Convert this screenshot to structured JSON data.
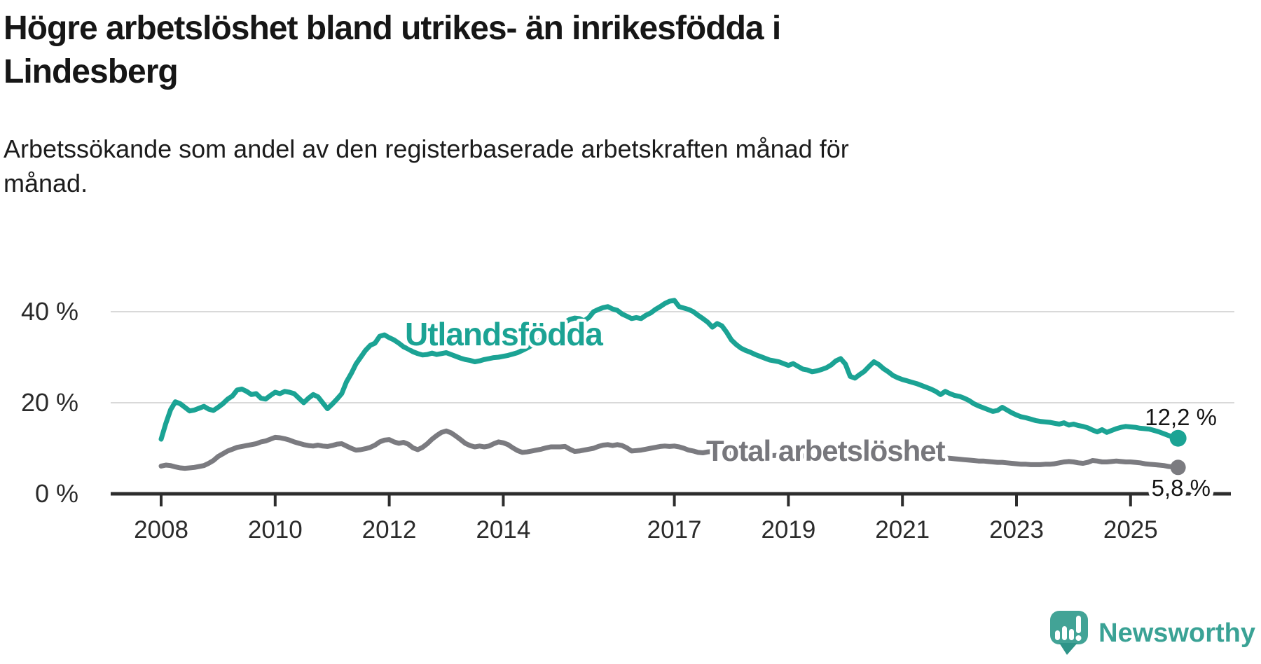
{
  "header": {
    "title": "Högre arbetslöshet bland utrikes- än inrikesfödda i Lindesberg",
    "title_lines": "Högre arbetslöshet bland utrikes- än inrikesfödda i\nLindesberg",
    "subtitle": "Arbetssökande som andel av den registerbaserade arbetskraften månad för månad.",
    "subtitle_lines": "Arbetssökande som andel av den registerbaserade arbetskraften månad för\nmånad."
  },
  "footer": {
    "brand_name": "Newsworthy"
  },
  "colors": {
    "series_foreign": "#1ba394",
    "series_total": "#7b7b80",
    "series_total_label": "#77777c",
    "axis": "#2d2d2d",
    "gridline": "#d9d9d9",
    "tick_label": "#2b2b2b",
    "annotation": "#161616",
    "brand_teal": "#3aa295",
    "brand_icon": "#42a396",
    "brand_icon_tail": "#2e9488",
    "background": "#ffffff"
  },
  "chart_data": {
    "type": "line",
    "title": "Högre arbetslöshet bland utrikes- än inrikesfödda i Lindesberg",
    "subtitle": "Arbetssökande som andel av den registerbaserade arbetskraften månad för månad.",
    "unit": "%",
    "x_ticks": [
      2008,
      2010,
      2012,
      2014,
      2017,
      2019,
      2021,
      2023,
      2025
    ],
    "y_ticks": [
      {
        "value": 0,
        "label": "0 %"
      },
      {
        "value": 20,
        "label": "20 %"
      },
      {
        "value": 40,
        "label": "40 %"
      }
    ],
    "ylim": [
      0,
      46
    ],
    "xlim_years": [
      2007.1,
      2026.9
    ],
    "grid": "horizontal-only",
    "legend_position": "inline-labels",
    "time": {
      "start_year": 2008,
      "start_month": 1,
      "end_year": 2025,
      "end_month": 11,
      "frequency": "monthly"
    },
    "series": [
      {
        "name": "Utlandsfödda",
        "color": "#1ba394",
        "end_value": 12.2,
        "end_label": "12,2 %",
        "values": [
          12.0,
          15.5,
          18.5,
          20.2,
          19.8,
          19.0,
          18.2,
          18.4,
          18.8,
          19.2,
          18.6,
          18.3,
          19.0,
          19.8,
          20.8,
          21.5,
          22.8,
          23.0,
          22.5,
          21.8,
          22.0,
          21.0,
          20.8,
          21.6,
          22.3,
          22.0,
          22.5,
          22.3,
          22.0,
          21.0,
          20.0,
          21.0,
          21.8,
          21.3,
          20.0,
          18.7,
          19.7,
          20.8,
          22.0,
          24.6,
          26.4,
          28.5,
          30.0,
          31.5,
          32.6,
          33.1,
          34.6,
          34.9,
          34.3,
          33.8,
          33.1,
          32.3,
          31.8,
          31.2,
          30.8,
          30.5,
          30.6,
          30.9,
          30.6,
          30.8,
          31.0,
          30.6,
          30.2,
          29.8,
          29.5,
          29.3,
          29.0,
          29.2,
          29.5,
          29.7,
          29.9,
          30.0,
          30.2,
          30.4,
          30.7,
          31.0,
          31.5,
          32.0,
          32.6,
          33.2,
          33.9,
          34.6,
          35.3,
          36.0,
          36.6,
          37.7,
          38.3,
          38.6,
          38.5,
          38.0,
          38.7,
          40.0,
          40.5,
          40.9,
          41.1,
          40.6,
          40.3,
          39.5,
          39.0,
          38.5,
          38.7,
          38.5,
          39.2,
          39.7,
          40.5,
          41.1,
          41.8,
          42.3,
          42.5,
          41.1,
          40.8,
          40.5,
          40.0,
          39.2,
          38.5,
          37.7,
          36.6,
          37.4,
          36.9,
          35.5,
          33.8,
          32.8,
          32.0,
          31.5,
          31.1,
          30.6,
          30.2,
          29.8,
          29.4,
          29.2,
          29.0,
          28.6,
          28.2,
          28.6,
          28.0,
          27.4,
          27.2,
          26.8,
          27.0,
          27.3,
          27.7,
          28.3,
          29.2,
          29.7,
          28.5,
          25.8,
          25.4,
          26.2,
          26.9,
          28.0,
          29.0,
          28.4,
          27.5,
          26.8,
          26.0,
          25.5,
          25.1,
          24.8,
          24.5,
          24.2,
          23.8,
          23.4,
          23.0,
          22.5,
          21.8,
          22.5,
          22.0,
          21.6,
          21.4,
          21.0,
          20.5,
          19.8,
          19.3,
          18.9,
          18.5,
          18.1,
          18.3,
          19.0,
          18.4,
          17.8,
          17.3,
          16.9,
          16.7,
          16.4,
          16.1,
          15.9,
          15.8,
          15.7,
          15.5,
          15.3,
          15.6,
          15.1,
          15.3,
          15.0,
          14.8,
          14.5,
          14.0,
          13.6,
          14.1,
          13.5,
          13.9,
          14.3,
          14.6,
          14.8,
          14.7,
          14.6,
          14.4,
          14.3,
          14.2,
          13.9,
          13.6,
          13.2,
          12.8,
          12.4,
          12.2
        ]
      },
      {
        "name": "Total arbetslöshet",
        "color": "#7b7b80",
        "end_value": 5.8,
        "end_label": "5,8 %",
        "values": [
          6.1,
          6.3,
          6.2,
          5.9,
          5.7,
          5.6,
          5.7,
          5.8,
          6.0,
          6.2,
          6.7,
          7.3,
          8.2,
          8.8,
          9.4,
          9.8,
          10.2,
          10.4,
          10.6,
          10.8,
          11.0,
          11.4,
          11.6,
          12.0,
          12.4,
          12.3,
          12.1,
          11.8,
          11.4,
          11.1,
          10.8,
          10.6,
          10.5,
          10.7,
          10.5,
          10.4,
          10.6,
          10.9,
          11.0,
          10.5,
          10.0,
          9.6,
          9.7,
          9.9,
          10.2,
          10.7,
          11.4,
          11.8,
          11.9,
          11.4,
          11.1,
          11.3,
          10.9,
          10.1,
          9.7,
          10.2,
          11.0,
          12.0,
          12.8,
          13.5,
          13.8,
          13.4,
          12.7,
          11.9,
          11.1,
          10.6,
          10.3,
          10.5,
          10.3,
          10.5,
          11.0,
          11.4,
          11.2,
          10.8,
          10.1,
          9.5,
          9.1,
          9.2,
          9.4,
          9.6,
          9.8,
          10.1,
          10.3,
          10.3,
          10.3,
          10.4,
          9.8,
          9.3,
          9.4,
          9.6,
          9.8,
          10.0,
          10.4,
          10.7,
          10.8,
          10.6,
          10.8,
          10.6,
          10.1,
          9.4,
          9.5,
          9.6,
          9.8,
          10.0,
          10.2,
          10.4,
          10.5,
          10.4,
          10.5,
          10.3,
          10.0,
          9.6,
          9.4,
          9.1,
          9.0,
          9.2,
          9.3,
          9.2,
          9.1,
          9.0,
          8.9,
          8.8,
          8.7,
          8.5,
          8.4,
          8.3,
          8.3,
          8.3,
          8.4,
          8.4,
          8.5,
          8.5,
          8.5,
          8.5,
          8.4,
          8.3,
          8.3,
          8.3,
          8.4,
          8.5,
          8.6,
          8.8,
          8.9,
          9.0,
          8.9,
          8.8,
          9.0,
          9.5,
          9.8,
          10.0,
          10.1,
          10.0,
          9.8,
          9.6,
          9.4,
          9.3,
          9.2,
          9.1,
          9.0,
          8.8,
          8.6,
          8.4,
          8.2,
          8.0,
          7.9,
          7.8,
          7.8,
          7.7,
          7.6,
          7.5,
          7.4,
          7.3,
          7.2,
          7.2,
          7.1,
          7.0,
          6.9,
          6.9,
          6.8,
          6.7,
          6.6,
          6.5,
          6.5,
          6.4,
          6.4,
          6.4,
          6.5,
          6.5,
          6.6,
          6.8,
          7.0,
          7.1,
          7.0,
          6.8,
          6.7,
          6.9,
          7.3,
          7.2,
          7.0,
          7.0,
          7.1,
          7.2,
          7.1,
          7.0,
          7.0,
          6.9,
          6.8,
          6.6,
          6.5,
          6.4,
          6.3,
          6.2,
          6.0,
          5.9,
          5.8
        ]
      }
    ]
  }
}
